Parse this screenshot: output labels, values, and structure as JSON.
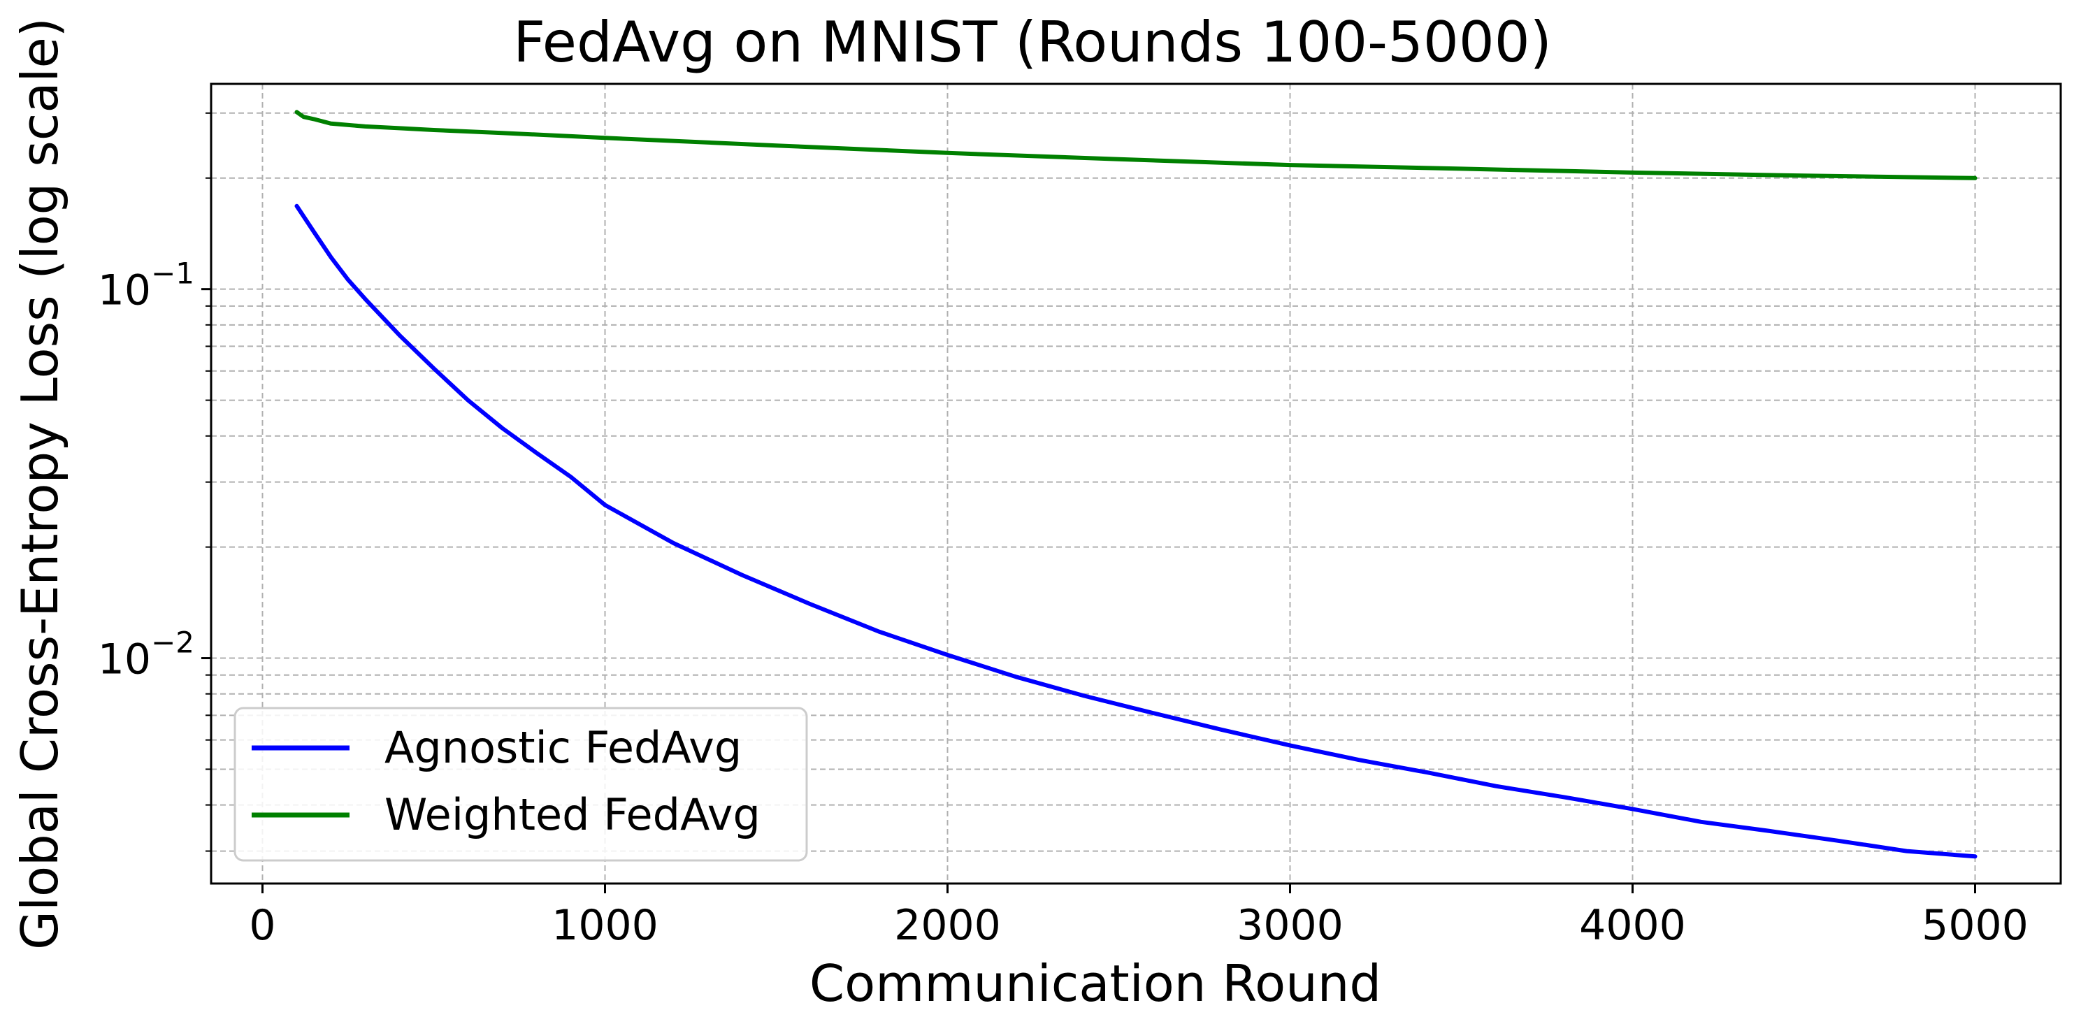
{
  "chart_data": {
    "type": "line",
    "title": "FedAvg on MNIST (Rounds 100-5000)",
    "xlabel": "Communication Round",
    "ylabel": "Global Cross-Entropy Loss (log scale)",
    "xlim": [
      -150,
      5250
    ],
    "ylim": [
      0.00245,
      0.36
    ],
    "yscale": "log",
    "grid": true,
    "legend_position": "lower-left",
    "x_ticks": [
      {
        "value": 0,
        "label": "0"
      },
      {
        "value": 1000,
        "label": "1000"
      },
      {
        "value": 2000,
        "label": "2000"
      },
      {
        "value": 3000,
        "label": "3000"
      },
      {
        "value": 4000,
        "label": "4000"
      },
      {
        "value": 5000,
        "label": "5000"
      }
    ],
    "y_major_ticks": [
      {
        "value": 0.1,
        "base": "10",
        "exp": "−1"
      },
      {
        "value": 0.01,
        "base": "10",
        "exp": "−2"
      }
    ],
    "series": [
      {
        "name": "Agnostic FedAvg",
        "color": "#0000ff",
        "x": [
          100,
          150,
          200,
          250,
          300,
          400,
          500,
          600,
          700,
          800,
          900,
          1000,
          1200,
          1400,
          1600,
          1800,
          2000,
          2200,
          2400,
          2600,
          2800,
          3000,
          3200,
          3400,
          3600,
          3800,
          4000,
          4200,
          4400,
          4600,
          4800,
          5000
        ],
        "y": [
          0.168,
          0.143,
          0.122,
          0.106,
          0.094,
          0.075,
          0.061,
          0.05,
          0.042,
          0.036,
          0.031,
          0.026,
          0.0205,
          0.0168,
          0.014,
          0.0118,
          0.0102,
          0.0089,
          0.0079,
          0.0071,
          0.0064,
          0.0058,
          0.0053,
          0.0049,
          0.0045,
          0.0042,
          0.0039,
          0.0036,
          0.0034,
          0.0032,
          0.003,
          0.0029
        ]
      },
      {
        "name": "Weighted FedAvg",
        "color": "#008000",
        "x": [
          100,
          120,
          150,
          200,
          300,
          400,
          500,
          700,
          1000,
          1500,
          2000,
          2500,
          3000,
          3500,
          4000,
          4500,
          5000
        ],
        "y": [
          0.302,
          0.293,
          0.289,
          0.281,
          0.276,
          0.273,
          0.27,
          0.265,
          0.257,
          0.245,
          0.234,
          0.225,
          0.217,
          0.212,
          0.207,
          0.203,
          0.2
        ]
      }
    ]
  }
}
